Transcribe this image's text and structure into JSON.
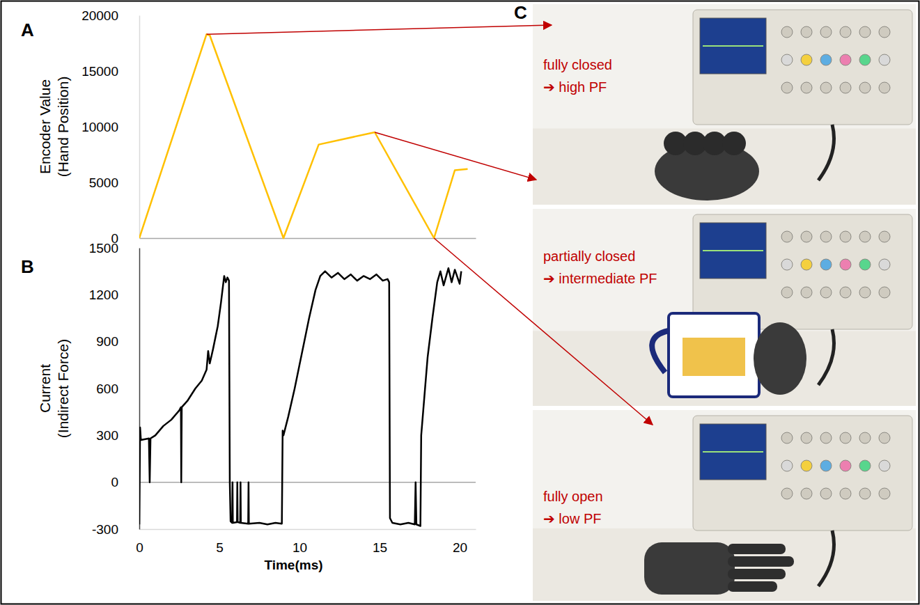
{
  "panel_labels": [
    "A",
    "B",
    "C"
  ],
  "chart_data": [
    {
      "type": "line",
      "ylabel": "Encoder Value\n(Hand Position)",
      "x": [
        0,
        4.2,
        4.4,
        9.0,
        11.2,
        14.7,
        18.4,
        19.7,
        20.5
      ],
      "values": [
        0,
        18300,
        18200,
        0,
        8400,
        9500,
        0,
        6100,
        6200
      ],
      "color": "#ffc000",
      "xlim": [
        0,
        21
      ],
      "ylim": [
        0,
        20000
      ],
      "yticks": [
        0,
        5000,
        10000,
        15000,
        20000
      ],
      "tick_labels": "y"
    },
    {
      "type": "line",
      "ylabel": "Current\n(Indirect Force)",
      "xlabel": "Time(ms)",
      "x": [
        0,
        0.05,
        0.1,
        0.6,
        0.65,
        0.7,
        1.0,
        1.5,
        2.0,
        2.5,
        2.6,
        2.62,
        2.65,
        3.0,
        3.5,
        3.9,
        4.2,
        4.3,
        4.4,
        4.6,
        4.9,
        5.1,
        5.3,
        5.4,
        5.5,
        5.6,
        5.65,
        5.7,
        5.8,
        5.82,
        5.84,
        6.1,
        6.12,
        6.14,
        6.3,
        6.32,
        6.34,
        6.8,
        6.82,
        6.84,
        7.5,
        8.0,
        8.5,
        8.9,
        8.95,
        9.0,
        9.3,
        9.7,
        10.0,
        10.3,
        10.6,
        11.0,
        11.3,
        11.6,
        12.0,
        12.4,
        12.8,
        13.2,
        13.6,
        14.0,
        14.4,
        14.8,
        15.2,
        15.5,
        15.6,
        15.65,
        15.8,
        16.3,
        16.8,
        17.2,
        17.25,
        17.3,
        17.55,
        17.6,
        17.8,
        18.0,
        18.3,
        18.6,
        18.8,
        19.0,
        19.3,
        19.5,
        19.7,
        20.0,
        20.1
      ],
      "values": [
        -270,
        350,
        270,
        280,
        0,
        280,
        300,
        360,
        400,
        460,
        480,
        0,
        480,
        520,
        600,
        650,
        720,
        840,
        760,
        850,
        1000,
        1150,
        1320,
        1280,
        1310,
        1290,
        0,
        -250,
        -260,
        0,
        -260,
        -255,
        0,
        -255,
        -260,
        0,
        -260,
        -265,
        0,
        -265,
        -260,
        -270,
        -260,
        -265,
        330,
        300,
        420,
        600,
        750,
        900,
        1050,
        1230,
        1320,
        1350,
        1310,
        1340,
        1300,
        1330,
        1290,
        1320,
        1300,
        1330,
        1290,
        1300,
        1280,
        -230,
        -260,
        -270,
        -260,
        -270,
        0,
        -270,
        -280,
        300,
        550,
        800,
        1050,
        1280,
        1350,
        1260,
        1370,
        1280,
        1360,
        1270,
        1350
      ],
      "color": "#000000",
      "xlim": [
        0,
        21
      ],
      "xticks": [
        0,
        5,
        10,
        15,
        20
      ],
      "ylim": [
        -300,
        1500
      ],
      "yticks": [
        -300,
        0,
        300,
        600,
        900,
        1200,
        1500
      ]
    }
  ],
  "photos": [
    {
      "lines": [
        "fully closed",
        "➔ high PF"
      ]
    },
    {
      "lines": [
        "partially closed",
        "➔ intermediate PF"
      ]
    },
    {
      "lines": [
        "fully open",
        "➔ low PF"
      ]
    }
  ]
}
